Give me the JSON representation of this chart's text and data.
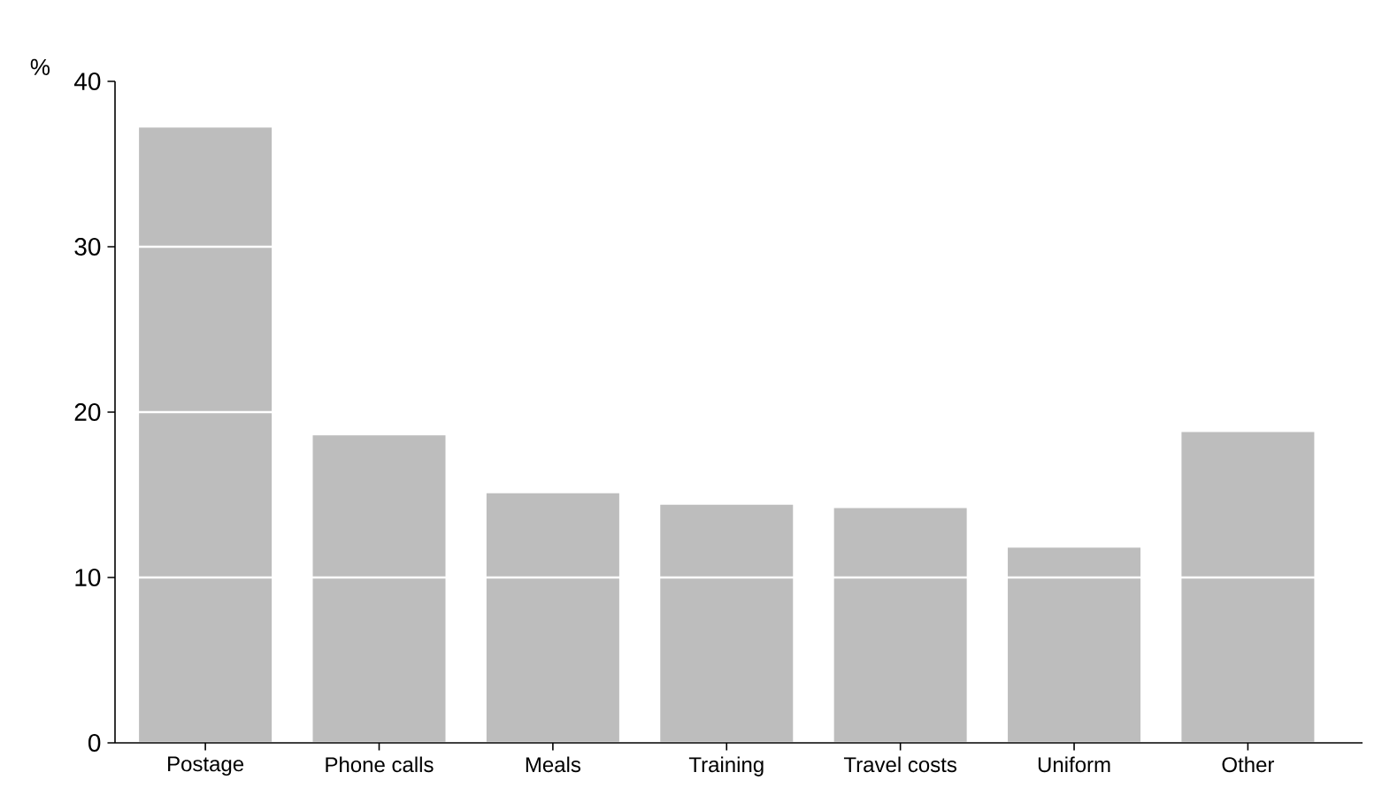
{
  "chart_data": {
    "type": "bar",
    "ylabel": "%",
    "categories": [
      "Postage",
      "Phone calls",
      "Meals",
      "Training",
      "Travel costs",
      "Uniform",
      "Other"
    ],
    "values": [
      37.2,
      18.6,
      15.1,
      14.4,
      14.2,
      11.8,
      18.8
    ],
    "color": "#bdbdbd",
    "ylim": [
      0,
      40
    ],
    "yticks": [
      0,
      10,
      20,
      30,
      40
    ],
    "grid": "y"
  }
}
